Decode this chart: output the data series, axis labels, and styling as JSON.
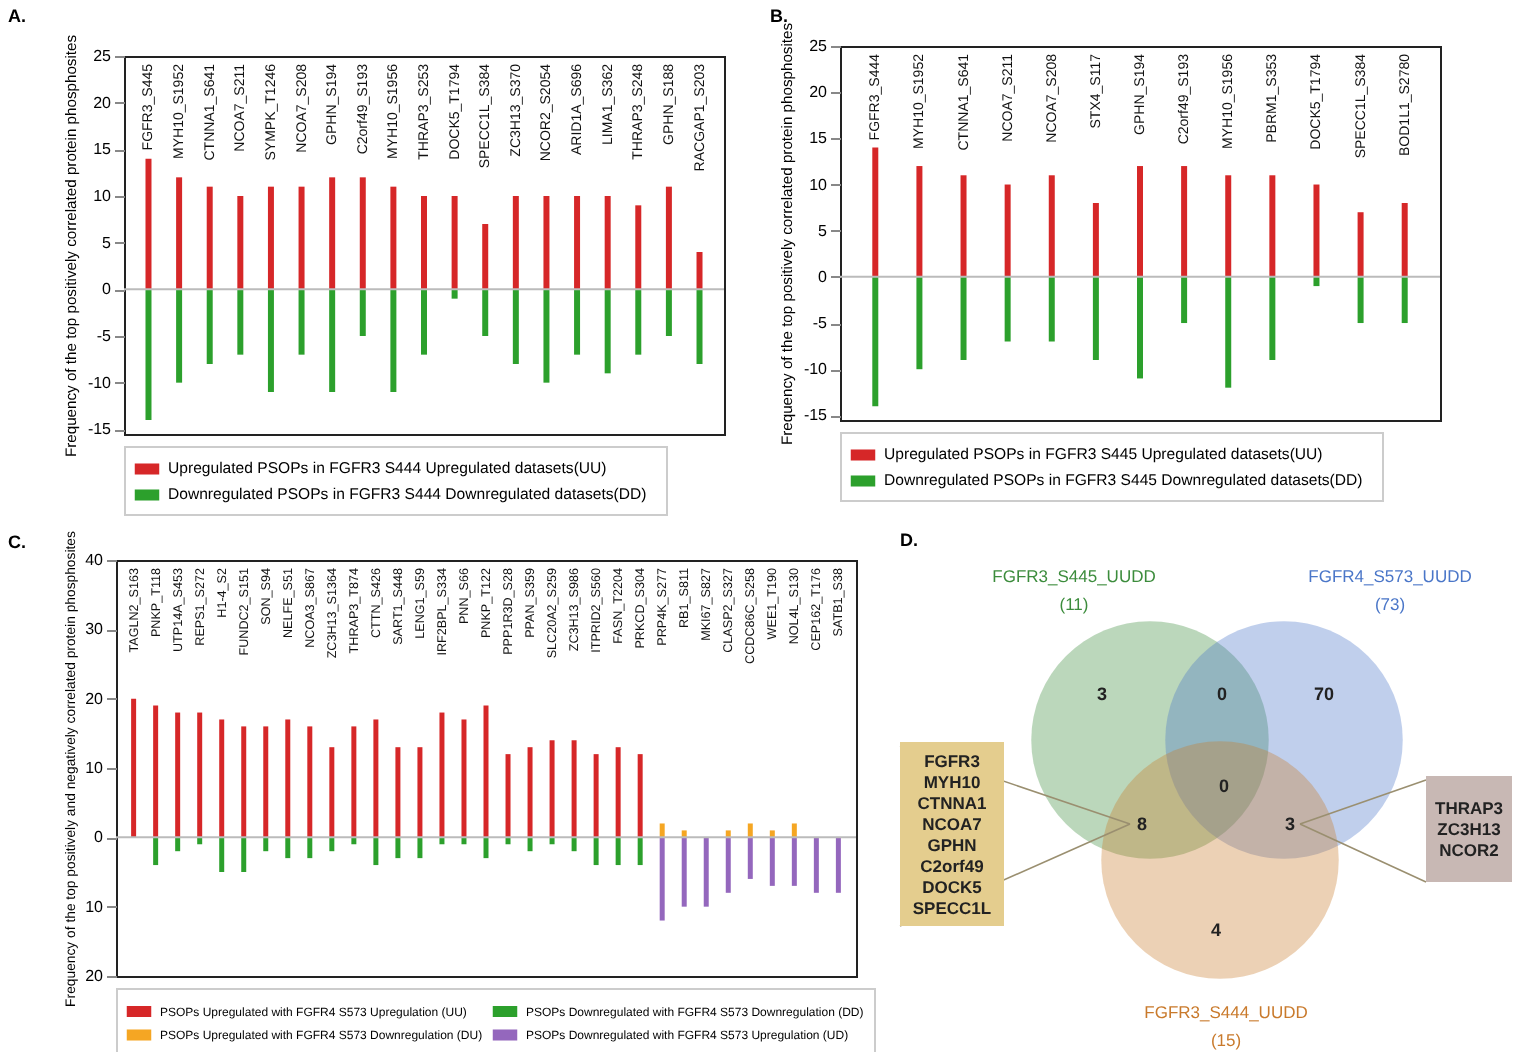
{
  "chart_data": [
    {
      "type": "bar",
      "title": "A.",
      "ylabel": "Frequency of the top positively correlated protein phosphosites",
      "categories": [
        "FGFR3_S445",
        "MYH10_S1952",
        "CTNNA1_S641",
        "NCOA7_S211",
        "SYMPK_T1246",
        "NCOA7_S208",
        "GPHN_S194",
        "C2orf49_S193",
        "MYH10_S1956",
        "THRAP3_S253",
        "DOCK5_T1794",
        "SPECC1L_S384",
        "ZC3H13_S370",
        "NCOR2_S2054",
        "ARID1A_S696",
        "LIMA1_S362",
        "THRAP3_S248",
        "GPHN_S188",
        "RACGAP1_S203"
      ],
      "series": [
        {
          "name": "Upregulated PSOPs in FGFR3 S444 Upregulated datasets(UU)",
          "color": "#d62728",
          "values": [
            14,
            12,
            11,
            10,
            11,
            11,
            12,
            12,
            11,
            10,
            10,
            7,
            10,
            10,
            10,
            10,
            9,
            11,
            4
          ]
        },
        {
          "name": "Downregulated PSOPs in FGFR3  S444  Downregulated datasets(DD)",
          "color": "#2ca02c",
          "values": [
            -14,
            -10,
            -8,
            -7,
            -11,
            -7,
            -11,
            -5,
            -11,
            -7,
            -1,
            -5,
            -8,
            -10,
            -7,
            -9,
            -7,
            -5,
            -8
          ]
        }
      ],
      "ylim": [
        -15.5,
        25
      ],
      "yticks": [
        -15,
        -10,
        -5,
        0,
        5,
        10,
        15,
        20,
        25
      ],
      "stacked": true,
      "legend": "bottom",
      "ref_lines": [
        {
          "axis": "y",
          "value": 0,
          "color": "#bbbbbb"
        }
      ]
    },
    {
      "type": "bar",
      "title": "B.",
      "ylabel": "Frequency of the top positively correlated protein phosphosites",
      "categories": [
        "FGFR3_S444",
        "MYH10_S1952",
        "CTNNA1_S641",
        "NCOA7_S211",
        "NCOA7_S208",
        "STX4_S117",
        "GPHN_S194",
        "C2orf49_S193",
        "MYH10_S1956",
        "PBRM1_S353",
        "DOCK5_T1794",
        "SPECC1L_S384",
        "BOD1L1_S2780"
      ],
      "series": [
        {
          "name": "Upregulated PSOPs in FGFR3 S445 Upregulated datasets(UU)",
          "color": "#d62728",
          "values": [
            14,
            12,
            11,
            10,
            11,
            8,
            12,
            12,
            11,
            11,
            10,
            7,
            8
          ]
        },
        {
          "name": "Downregulated PSOPs in FGFR3  S445  Downregulated datasets(DD)",
          "color": "#2ca02c",
          "values": [
            -14,
            -10,
            -9,
            -7,
            -7,
            -9,
            -11,
            -5,
            -12,
            -9,
            -1,
            -5,
            -5
          ]
        }
      ],
      "ylim": [
        -15.5,
        25
      ],
      "yticks": [
        -15,
        -10,
        -5,
        0,
        5,
        10,
        15,
        20,
        25
      ],
      "stacked": true,
      "legend": "bottom",
      "ref_lines": [
        {
          "axis": "y",
          "value": 0,
          "color": "#bbbbbb"
        }
      ]
    },
    {
      "type": "bar",
      "title": "C.",
      "ylabel": "Frequency of the top positively and negatively correlated protein phosphosites",
      "categories": [
        "TAGLN2_S163",
        "PNKP_T118",
        "UTP14A_S453",
        "REPS1_S272",
        "H1-4_S2",
        "FUNDC2_S151",
        "SON_S94",
        "NELFE_S51",
        "NCOA3_S867",
        "ZC3H13_S1364",
        "THRAP3_T874",
        "CTTN_S426",
        "SART1_S448",
        "LENG1_S59",
        "IRF2BPL_S334",
        "PNN_S66",
        "PNKP_T122",
        "PPP1R3D_S28",
        "PPAN_S359",
        "SLC20A2_S259",
        "ZC3H13_S986",
        "ITPRID2_S560",
        "FASN_T2204",
        "PRKCD_S304",
        "PRP4K_S277",
        "RB1_S811",
        "MKI67_S827",
        "CLASP2_S327",
        "CCDC86C_S258",
        "WEE1_T190",
        "NOL4L_S130",
        "CEP162_T176",
        "SATB1_S38"
      ],
      "series": [
        {
          "name": "PSOPs Upregulated with FGFR4 S573 Upregulation (UU)",
          "color": "#d62728",
          "values": [
            20,
            19,
            18,
            18,
            17,
            16,
            16,
            17,
            16,
            13,
            16,
            17,
            13,
            13,
            18,
            17,
            19,
            12,
            13,
            14,
            14,
            12,
            13,
            12,
            null,
            null,
            null,
            null,
            null,
            null,
            null,
            null,
            null
          ]
        },
        {
          "name": "PSOPs Upregulated with FGFR4 S573 Downregulation (DU)",
          "color": "#f5a623",
          "values": [
            null,
            null,
            null,
            null,
            null,
            null,
            null,
            null,
            null,
            null,
            null,
            null,
            null,
            null,
            null,
            null,
            null,
            null,
            null,
            null,
            null,
            null,
            null,
            null,
            2,
            1,
            null,
            1,
            2,
            1,
            2,
            null,
            null
          ]
        },
        {
          "name": "PSOPs Downregulated with FGFR4 S573 Downregulation (DD)",
          "color": "#2ca02c",
          "values": [
            null,
            -4,
            -2,
            -1,
            -5,
            -5,
            -2,
            -3,
            -3,
            -2,
            -1,
            -4,
            -3,
            -3,
            -1,
            -1,
            -3,
            -1,
            -2,
            -1,
            -2,
            -4,
            -4,
            -4,
            null,
            null,
            null,
            null,
            null,
            null,
            null,
            null,
            null
          ]
        },
        {
          "name": "PSOPs Downregulated with FGFR4 S573 Upregulation (UD)",
          "color": "#9467bd",
          "values": [
            null,
            null,
            null,
            null,
            null,
            null,
            null,
            null,
            null,
            null,
            null,
            null,
            null,
            null,
            null,
            null,
            null,
            null,
            null,
            null,
            null,
            null,
            null,
            null,
            -12,
            -10,
            -10,
            -8,
            -6,
            -7,
            -7,
            -8,
            -8
          ]
        }
      ],
      "ylim": [
        -20,
        40
      ],
      "yticks": [
        {
          "value": -20,
          "label": "20"
        },
        {
          "value": -10,
          "label": "10"
        },
        0,
        10,
        20,
        30,
        40
      ],
      "stacked": true,
      "legend": "bottom",
      "ref_lines": [
        {
          "axis": "y",
          "value": 0,
          "color": "#bbbbbb"
        }
      ]
    },
    {
      "type": "other",
      "title": "D.",
      "series": [
        {
          "name": "FGFR3_S445_UUDD",
          "color": "#3c8c3c",
          "values": [
            11
          ],
          "value_labels": [
            "(11)"
          ]
        },
        {
          "name": "FGFR4_S573_UUDD",
          "color": "#4a76c8",
          "values": [
            73
          ],
          "value_labels": [
            "(73)"
          ]
        },
        {
          "name": "FGFR3_S444_UUDD",
          "color": "#c97a2c",
          "values": [
            15
          ],
          "value_labels": [
            "(15)"
          ]
        }
      ],
      "annotations": [
        "3",
        "0",
        "70",
        "0",
        "8",
        "3",
        "4",
        "FGFR3\nMYH10\nCTNNA1\nNCOA7\nGPHN\nC2orf49\nDOCK5\nSPECC1L",
        "THRAP3\nZC3H13\nNCOR2"
      ]
    }
  ]
}
